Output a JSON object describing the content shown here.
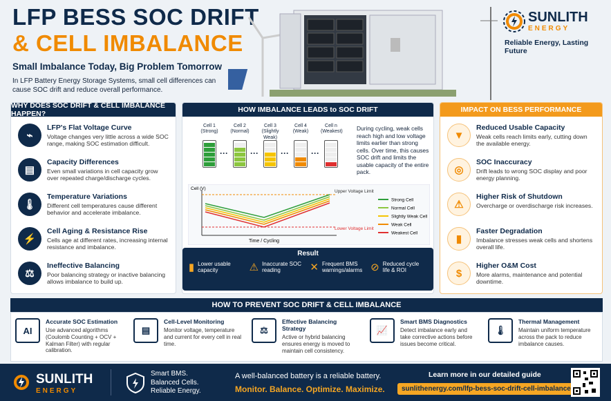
{
  "header": {
    "title_line1": "LFP BESS SOC DRIFT",
    "title_line2": "& CELL IMBALANCE",
    "subtitle": "Small Imbalance Today, Big Problem Tomorrow",
    "intro": "In LFP Battery Energy Storage Systems, small cell differences can cause SOC drift and reduce overall performance."
  },
  "brand": {
    "name": "SUNLITH",
    "sub": "ENERGY",
    "tagline": "Reliable Energy, Lasting Future"
  },
  "why": {
    "title": "WHY DOES SOC DRIFT & CELL IMBALANCE HAPPEN?",
    "items": [
      {
        "title": "LFP's Flat Voltage Curve",
        "text": "Voltage changes very little across a wide SOC range, making SOC estimation difficult."
      },
      {
        "title": "Capacity Differences",
        "text": "Even small variations in cell capacity grow over repeated charge/discharge cycles."
      },
      {
        "title": "Temperature Variations",
        "text": "Different cell temperatures cause different behavior and accelerate imbalance."
      },
      {
        "title": "Cell Aging & Resistance Rise",
        "text": "Cells age at different rates, increasing internal resistance and imbalance."
      },
      {
        "title": "Ineffective Balancing",
        "text": "Poor balancing strategy or inactive balancing allows imbalance to build up."
      }
    ]
  },
  "how": {
    "title": "HOW IMBALANCE LEADS to SOC DRIFT",
    "cells": [
      {
        "name": "Cell 1",
        "status": "(Strong)"
      },
      {
        "name": "Cell 2",
        "status": "(Normal)"
      },
      {
        "name": "Cell 3",
        "status": "(Slightly Weak)"
      },
      {
        "name": "Cell 4",
        "status": "(Weak)"
      },
      {
        "name": "Cell n",
        "status": "(Weakest)"
      }
    ],
    "description": "During cycling, weak cells reach high and low voltage limits earlier than strong cells. Over time, this causes SOC drift and limits the usable capacity of the entire pack.",
    "chart": {
      "y_label": "Cell (V)",
      "x_label": "Time / Cycling",
      "upper_limit": "Upper Voltage Limit",
      "lower_limit": "Lower Voltage Limit",
      "legend": [
        "Strong Cell",
        "Normal Cell",
        "Slightly Weak Cell",
        "Weak Cell",
        "Weakest Cell"
      ]
    },
    "result": {
      "title": "Result",
      "items": [
        "Lower usable capacity",
        "Inaccurate SOC reading",
        "Frequent BMS warnings/alarms",
        "Reduced cycle life & ROI"
      ]
    }
  },
  "impact": {
    "title": "IMPACT ON BESS PERFORMANCE",
    "items": [
      {
        "title": "Reduced Usable Capacity",
        "text": "Weak cells reach limits early, cutting down the available energy."
      },
      {
        "title": "SOC Inaccuracy",
        "text": "Drift leads to wrong SOC display and poor energy planning."
      },
      {
        "title": "Higher Risk of Shutdown",
        "text": "Overcharge or overdischarge risk increases."
      },
      {
        "title": "Faster Degradation",
        "text": "Imbalance stresses weak cells and shortens overall life."
      },
      {
        "title": "Higher O&M Cost",
        "text": "More alarms, maintenance and potential downtime."
      }
    ]
  },
  "prevent": {
    "title": "HOW TO PREVENT SOC DRIFT & CELL IMBALANCE",
    "items": [
      {
        "title": "Accurate SOC Estimation",
        "text": "Use advanced algorithms (Coulomb Counting + OCV + Kalman Filter) with regular calibration."
      },
      {
        "title": "Cell-Level Monitoring",
        "text": "Monitor voltage, temperature and current for every cell in real time."
      },
      {
        "title": "Effective Balancing Strategy",
        "text": "Active or hybrid balancing ensures energy is moved to maintain cell consistency."
      },
      {
        "title": "Smart BMS Diagnostics",
        "text": "Detect imbalance early and take corrective actions before issues become critical."
      },
      {
        "title": "Thermal Management",
        "text": "Maintain uniform temperature across the pack to reduce imbalance causes."
      }
    ]
  },
  "footer": {
    "brand": "SUNLITH",
    "brand_sub": "ENERGY",
    "slogan": [
      "Smart BMS.",
      "Balanced Cells.",
      "Reliable Energy."
    ],
    "quote": "A well-balanced battery is a reliable battery.",
    "motto": "Monitor. Balance. Optimize. Maximize.",
    "learn": "Learn more in our detailed guide",
    "url": "sunlithenergy.com/lfp-bess-soc-drift-cell-imbalance/"
  }
}
